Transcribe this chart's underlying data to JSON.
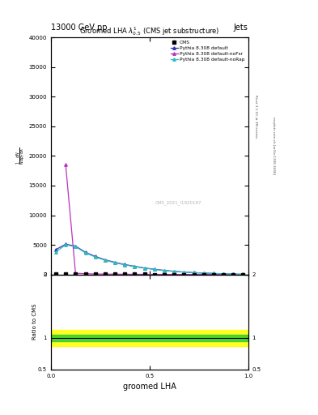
{
  "title_top": "13000 GeV pp",
  "title_right": "Jets",
  "plot_title": "Groomed LHA $\\lambda^{1}_{0.5}$ (CMS jet substructure)",
  "watermark": "CMS_2021_I1920187",
  "rivet_label": "Rivet 3.1.10, ≥ 3M events",
  "arxiv_label": "mcplots.cern.ch [arXiv:1306.3436]",
  "xlabel": "groomed LHA",
  "ylim_main": [
    0,
    40000
  ],
  "yticks_main": [
    0,
    5000,
    10000,
    15000,
    20000,
    25000,
    30000,
    35000,
    40000
  ],
  "ylim_ratio": [
    0.5,
    2.0
  ],
  "xlim": [
    0,
    1.0
  ],
  "cms_x": [
    0.025,
    0.075,
    0.125,
    0.175,
    0.225,
    0.275,
    0.325,
    0.375,
    0.425,
    0.475,
    0.525,
    0.575,
    0.625,
    0.675,
    0.725,
    0.775,
    0.825,
    0.875,
    0.925,
    0.975
  ],
  "cms_y": [
    80,
    90,
    85,
    75,
    65,
    55,
    45,
    38,
    30,
    25,
    20,
    16,
    12,
    10,
    8,
    6,
    5,
    4,
    3,
    2
  ],
  "pythia_default_x": [
    0.025,
    0.075,
    0.125,
    0.175,
    0.225,
    0.275,
    0.325,
    0.375,
    0.425,
    0.475,
    0.525,
    0.575,
    0.625,
    0.675,
    0.725,
    0.775,
    0.825,
    0.875,
    0.925,
    0.975
  ],
  "pythia_default_y": [
    4200,
    5100,
    4800,
    3750,
    3050,
    2480,
    2050,
    1680,
    1380,
    1100,
    890,
    690,
    540,
    410,
    320,
    245,
    175,
    115,
    68,
    28
  ],
  "pythia_nofsr_x": [
    0.075,
    0.125,
    0.175,
    0.225,
    0.275,
    0.325,
    0.375,
    0.425,
    0.475,
    0.525,
    0.575,
    0.625,
    0.675,
    0.725,
    0.775,
    0.825,
    0.875,
    0.925,
    0.975
  ],
  "pythia_nofsr_y": [
    18500,
    210,
    130,
    85,
    62,
    50,
    40,
    30,
    24,
    18,
    14,
    11,
    9,
    7,
    5,
    4,
    3,
    2,
    1
  ],
  "pythia_norap_x": [
    0.025,
    0.075,
    0.125,
    0.175,
    0.225,
    0.275,
    0.325,
    0.375,
    0.425,
    0.475,
    0.525,
    0.575,
    0.625,
    0.675,
    0.725,
    0.775,
    0.825,
    0.875,
    0.925,
    0.975
  ],
  "pythia_norap_y": [
    3800,
    5000,
    4700,
    3650,
    2950,
    2400,
    1980,
    1620,
    1320,
    1060,
    850,
    660,
    510,
    390,
    305,
    232,
    165,
    108,
    62,
    24
  ],
  "color_default": "#3333bb",
  "color_nofsr": "#bb33bb",
  "color_norap": "#33bbbb",
  "color_cms": "black",
  "ratio_green_lo": 0.95,
  "ratio_green_hi": 1.05,
  "ratio_yellow_lo": 0.87,
  "ratio_yellow_hi": 1.13
}
